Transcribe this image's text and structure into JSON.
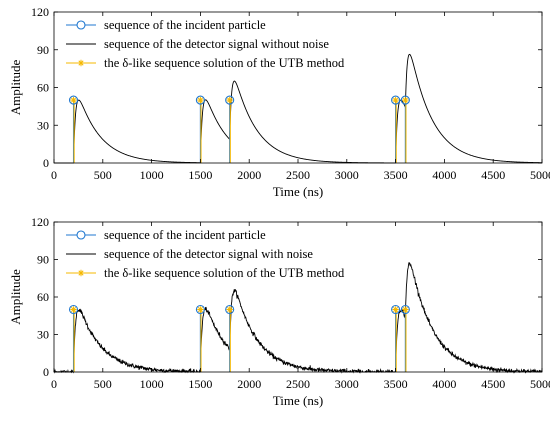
{
  "chart_data": [
    {
      "type": "line",
      "xlabel": "Time (ns)",
      "ylabel": "Amplitude",
      "xlim": [
        0,
        5000
      ],
      "ylim": [
        0,
        120
      ],
      "xticks": [
        0,
        500,
        1000,
        1500,
        2000,
        2500,
        3000,
        3500,
        4000,
        4500,
        5000
      ],
      "yticks": [
        0,
        30,
        60,
        90,
        120
      ],
      "grid": false,
      "legend_position": "top-left",
      "noise": false,
      "series": [
        {
          "name": "sequence of the incident particle",
          "kind": "stem-circle",
          "color": "#1f77d0",
          "x": [
            200,
            1500,
            1800,
            3500,
            3600
          ],
          "y": [
            50,
            50,
            50,
            50,
            50
          ]
        },
        {
          "name": "sequence of the detector signal without noise",
          "kind": "line",
          "color": "#000000"
        },
        {
          "name": "the δ-like sequence solution of the UTB method",
          "kind": "stem-star",
          "color": "#f5b800",
          "x": [
            200,
            1500,
            1800,
            3500,
            3600
          ],
          "y": [
            50,
            50,
            50,
            50,
            50
          ]
        }
      ]
    },
    {
      "type": "line",
      "xlabel": "Time (ns)",
      "ylabel": "Amplitude",
      "xlim": [
        0,
        5000
      ],
      "ylim": [
        0,
        120
      ],
      "xticks": [
        0,
        500,
        1000,
        1500,
        2000,
        2500,
        3000,
        3500,
        4000,
        4500,
        5000
      ],
      "yticks": [
        0,
        30,
        60,
        90,
        120
      ],
      "grid": false,
      "legend_position": "top-left",
      "noise": true,
      "series": [
        {
          "name": "sequence of the incident particle",
          "kind": "stem-circle",
          "color": "#1f77d0",
          "x": [
            200,
            1500,
            1800,
            3500,
            3600
          ],
          "y": [
            50,
            50,
            50,
            50,
            50
          ]
        },
        {
          "name": "sequence of the detector signal with noise",
          "kind": "line",
          "color": "#000000"
        },
        {
          "name": "the δ-like sequence solution of the UTB method",
          "kind": "stem-star",
          "color": "#f5b800",
          "x": [
            200,
            1500,
            1800,
            3500,
            3600
          ],
          "y": [
            50,
            50,
            50,
            50,
            50
          ]
        }
      ]
    }
  ]
}
